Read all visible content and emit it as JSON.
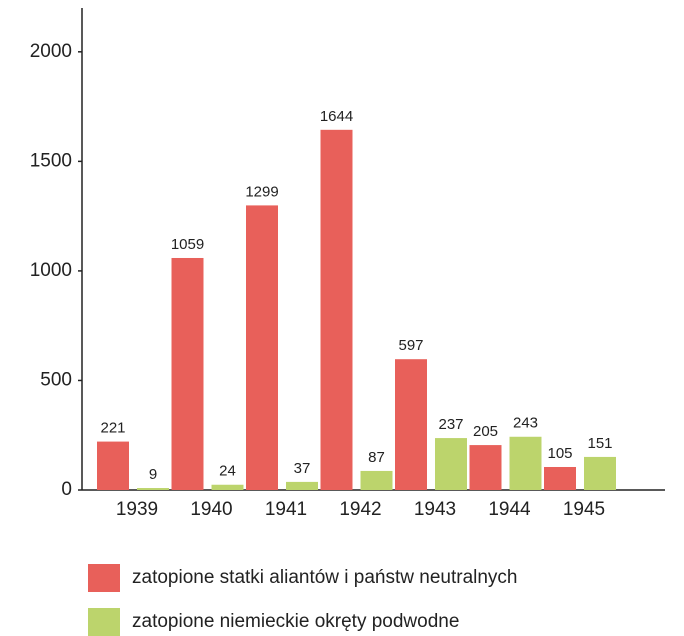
{
  "chart_data": {
    "type": "bar",
    "categories": [
      "1939",
      "1940",
      "1941",
      "1942",
      "1943",
      "1944",
      "1945"
    ],
    "series": [
      {
        "name": "zatopione statki aliantów i państw neutralnych",
        "color": "#e8605a",
        "values": [
          221,
          1059,
          1299,
          1644,
          597,
          205,
          105
        ]
      },
      {
        "name": "zatopione niemieckie okręty podwodne",
        "color": "#bcd46c",
        "values": [
          9,
          24,
          37,
          87,
          237,
          243,
          151
        ]
      }
    ],
    "ylim": [
      0,
      2200
    ],
    "yticks": [
      0,
      500,
      1000,
      1500,
      2000
    ],
    "grid": false
  }
}
